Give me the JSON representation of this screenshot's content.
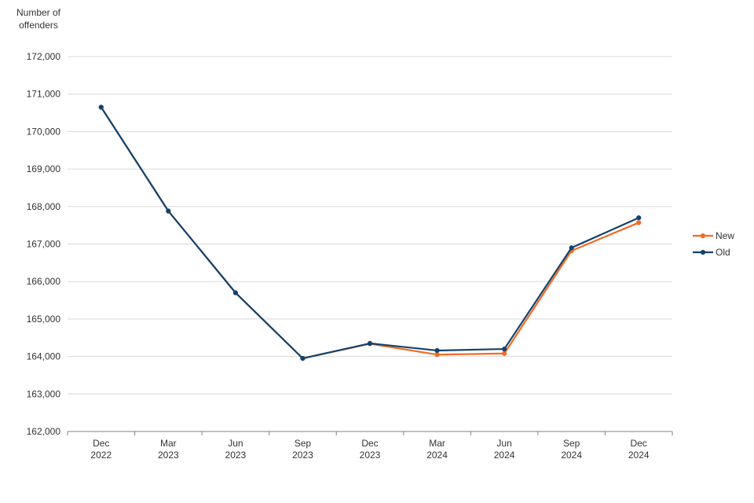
{
  "page": {
    "background": "#ffffff",
    "text_color": "#333333",
    "gridline_color": "#d9d9d9",
    "axis_color": "#808080"
  },
  "chart_data": {
    "type": "line",
    "title": "",
    "ylabel": "Number of offenders",
    "ylabel_lines": [
      "Number of",
      "offenders"
    ],
    "xlabel": "",
    "categories": [
      "Dec 2022",
      "Mar 2023",
      "Jun 2023",
      "Sep 2023",
      "Dec 2023",
      "Mar 2024",
      "Jun 2024",
      "Sep 2024",
      "Dec 2024"
    ],
    "series": [
      {
        "name": "New",
        "color": "#F46A25",
        "values": [
          170650,
          167880,
          165700,
          163950,
          164340,
          164050,
          164080,
          166820,
          167570
        ]
      },
      {
        "name": "Old",
        "color": "#12436D",
        "values": [
          170650,
          167880,
          165700,
          163950,
          164350,
          164160,
          164200,
          166900,
          167700
        ]
      }
    ],
    "ylim": [
      162000,
      172000
    ],
    "y_tick_step": 1000,
    "y_tick_labels": [
      "162,000",
      "163,000",
      "164,000",
      "165,000",
      "166,000",
      "167,000",
      "168,000",
      "169,000",
      "170,000",
      "171,000",
      "172,000"
    ],
    "grid": "horizontal",
    "legend_position": "right",
    "legend_items": [
      {
        "label": "New",
        "color": "#F46A25"
      },
      {
        "label": "Old",
        "color": "#12436D"
      }
    ]
  }
}
